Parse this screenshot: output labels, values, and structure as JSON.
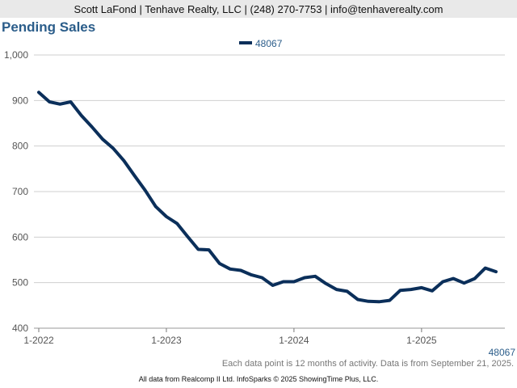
{
  "header": {
    "contact_line": "Scott LaFond | Tenhave Realty, LLC | (248) 270-7753 | info@tenhaverealty.com"
  },
  "footer": {
    "note": "Each data point is 12 months of activity. Data is from September 21, 2025.",
    "copyright": "All data from Realcomp II Ltd. InfoSparks © 2025 ShowingTime Plus, LLC."
  },
  "colors": {
    "series_line": "#0b2f5a",
    "title": "#2b5d8a",
    "grid": "#cfcfcf",
    "header_bg": "#e9e9e9"
  },
  "chart_data": {
    "type": "line",
    "title": "Pending Sales",
    "xlabel": "",
    "ylabel": "",
    "ylim": [
      400,
      1000
    ],
    "yticks": [
      "400",
      "500",
      "600",
      "700",
      "800",
      "900",
      "1,000"
    ],
    "ytick_values": [
      400,
      500,
      600,
      700,
      800,
      900,
      1000
    ],
    "xticks": [
      "1-2022",
      "1-2023",
      "1-2024",
      "1-2025"
    ],
    "grid": true,
    "legend": "top-center",
    "end_label": "48067",
    "x": [
      "2022-01",
      "2022-02",
      "2022-03",
      "2022-04",
      "2022-05",
      "2022-06",
      "2022-07",
      "2022-08",
      "2022-09",
      "2022-10",
      "2022-11",
      "2022-12",
      "2023-01",
      "2023-02",
      "2023-03",
      "2023-04",
      "2023-05",
      "2023-06",
      "2023-07",
      "2023-08",
      "2023-09",
      "2023-10",
      "2023-11",
      "2023-12",
      "2024-01",
      "2024-02",
      "2024-03",
      "2024-04",
      "2024-05",
      "2024-06",
      "2024-07",
      "2024-08",
      "2024-09",
      "2024-10",
      "2024-11",
      "2024-12",
      "2025-01",
      "2025-02",
      "2025-03",
      "2025-04",
      "2025-05",
      "2025-06",
      "2025-07",
      "2025-08"
    ],
    "series": [
      {
        "name": "48067",
        "values": [
          918,
          897,
          892,
          897,
          867,
          842,
          815,
          795,
          768,
          735,
          703,
          667,
          645,
          630,
          601,
          573,
          572,
          542,
          530,
          527,
          517,
          511,
          494,
          502,
          502,
          511,
          514,
          498,
          485,
          481,
          463,
          459,
          458,
          461,
          483,
          485,
          489,
          482,
          502,
          509,
          499,
          509,
          532,
          524
        ]
      }
    ]
  }
}
